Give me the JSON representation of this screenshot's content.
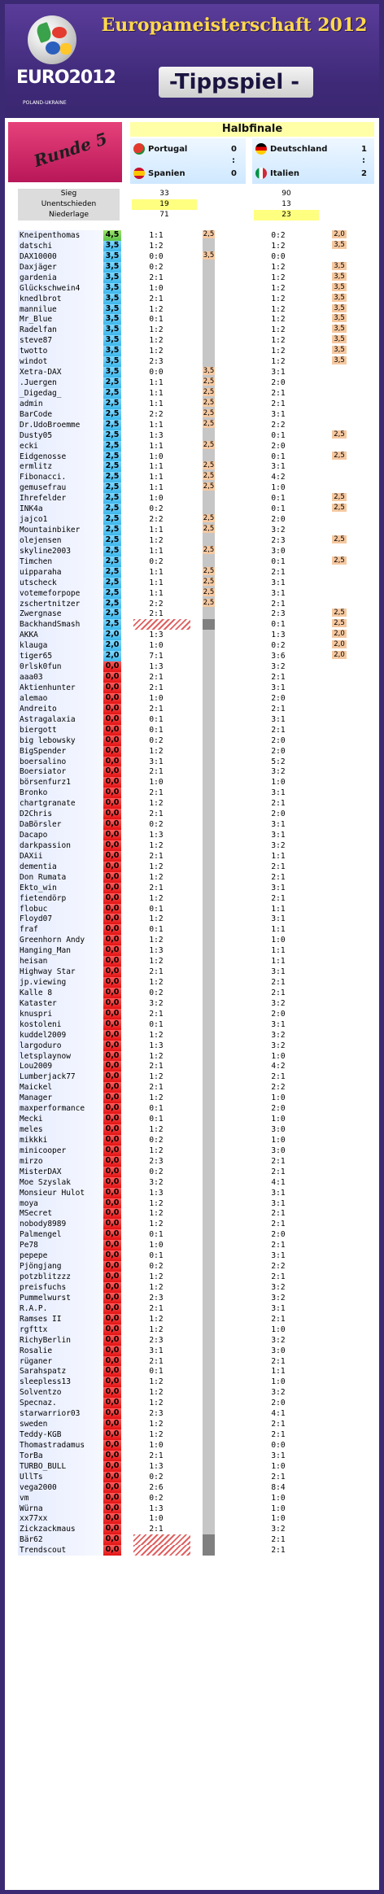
{
  "header": {
    "title": "Europameisterschaft 2012",
    "subtitle": "-Tippspiel -",
    "logo_text": "EURO2012",
    "logo_sub": "UEFA",
    "logo_country": "POLAND-UKRAINE"
  },
  "round": "Runde 5",
  "stage": "Halbfinale",
  "matches": [
    {
      "home": "Portugal",
      "away": "Spanien",
      "home_score": "0",
      "sep": ":",
      "away_score": "0"
    },
    {
      "home": "Deutschland",
      "away": "Italien",
      "home_score": "1",
      "sep": ":",
      "away_score": "2"
    }
  ],
  "stats": {
    "labels": [
      "Sieg",
      "Unentschieden",
      "Niederlage"
    ],
    "match1": [
      "33",
      "19",
      "71"
    ],
    "match2": [
      "90",
      "13",
      "23"
    ]
  },
  "colors": {
    "frame": "#3b2a73",
    "title": "#ffd84a",
    "round": "#d3286a",
    "stage_bg": "#ffffa8",
    "bonus_orange": "#f6c8a0",
    "gray_col": "#c6c6c6"
  },
  "rows": [
    {
      "n": "Kneipenthomas",
      "p": "4,5",
      "t1": "1:1",
      "b1": "2,5",
      "t2": "0:2",
      "b2": "2,0"
    },
    {
      "n": "datschi",
      "p": "3,5",
      "t1": "1:2",
      "b1": "",
      "t2": "1:2",
      "b2": "3,5"
    },
    {
      "n": "DAX10000",
      "p": "3,5",
      "t1": "0:0",
      "b1": "3,5",
      "t2": "0:0",
      "b2": ""
    },
    {
      "n": "Daxjäger",
      "p": "3,5",
      "t1": "0:2",
      "b1": "",
      "t2": "1:2",
      "b2": "3,5"
    },
    {
      "n": "gardenia",
      "p": "3,5",
      "t1": "2:1",
      "b1": "",
      "t2": "1:2",
      "b2": "3,5"
    },
    {
      "n": "Glückschwein4",
      "p": "3,5",
      "t1": "1:0",
      "b1": "",
      "t2": "1:2",
      "b2": "3,5"
    },
    {
      "n": "knedlbrot",
      "p": "3,5",
      "t1": "2:1",
      "b1": "",
      "t2": "1:2",
      "b2": "3,5"
    },
    {
      "n": "mannilue",
      "p": "3,5",
      "t1": "1:2",
      "b1": "",
      "t2": "1:2",
      "b2": "3,5"
    },
    {
      "n": "Mr_Blue",
      "p": "3,5",
      "t1": "0:1",
      "b1": "",
      "t2": "1:2",
      "b2": "3,5"
    },
    {
      "n": "Radelfan",
      "p": "3,5",
      "t1": "1:2",
      "b1": "",
      "t2": "1:2",
      "b2": "3,5"
    },
    {
      "n": "steve87",
      "p": "3,5",
      "t1": "1:2",
      "b1": "",
      "t2": "1:2",
      "b2": "3,5"
    },
    {
      "n": "twotto",
      "p": "3,5",
      "t1": "1:2",
      "b1": "",
      "t2": "1:2",
      "b2": "3,5"
    },
    {
      "n": "windot",
      "p": "3,5",
      "t1": "2:3",
      "b1": "",
      "t2": "1:2",
      "b2": "3,5"
    },
    {
      "n": "Xetra-DAX",
      "p": "3,5",
      "t1": "0:0",
      "b1": "3,5",
      "t2": "3:1",
      "b2": ""
    },
    {
      "n": ".Juergen",
      "p": "2,5",
      "t1": "1:1",
      "b1": "2,5",
      "t2": "2:0",
      "b2": ""
    },
    {
      "n": "_Digedag_",
      "p": "2,5",
      "t1": "1:1",
      "b1": "2,5",
      "t2": "2:1",
      "b2": ""
    },
    {
      "n": "admin",
      "p": "2,5",
      "t1": "1:1",
      "b1": "2,5",
      "t2": "2:1",
      "b2": ""
    },
    {
      "n": "BarCode",
      "p": "2,5",
      "t1": "2:2",
      "b1": "2,5",
      "t2": "3:1",
      "b2": ""
    },
    {
      "n": "Dr.UdoBroemme",
      "p": "2,5",
      "t1": "1:1",
      "b1": "2,5",
      "t2": "2:2",
      "b2": ""
    },
    {
      "n": "Dusty05",
      "p": "2,5",
      "t1": "1:3",
      "b1": "",
      "t2": "0:1",
      "b2": "2,5"
    },
    {
      "n": "ecki",
      "p": "2,5",
      "t1": "1:1",
      "b1": "2,5",
      "t2": "2:0",
      "b2": ""
    },
    {
      "n": "Eidgenosse",
      "p": "2,5",
      "t1": "1:0",
      "b1": "",
      "t2": "0:1",
      "b2": "2,5"
    },
    {
      "n": "ermlitz",
      "p": "2,5",
      "t1": "1:1",
      "b1": "2,5",
      "t2": "3:1",
      "b2": ""
    },
    {
      "n": "Fibonacci.",
      "p": "2,5",
      "t1": "1:1",
      "b1": "2,5",
      "t2": "4:2",
      "b2": ""
    },
    {
      "n": "gemusefrau",
      "p": "2,5",
      "t1": "1:1",
      "b1": "2,5",
      "t2": "1:0",
      "b2": ""
    },
    {
      "n": "Ihrefelder",
      "p": "2,5",
      "t1": "1:0",
      "b1": "",
      "t2": "0:1",
      "b2": "2,5"
    },
    {
      "n": "INK4a",
      "p": "2,5",
      "t1": "0:2",
      "b1": "",
      "t2": "0:1",
      "b2": "2,5"
    },
    {
      "n": "jajco1",
      "p": "2,5",
      "t1": "2:2",
      "b1": "2,5",
      "t2": "2:0",
      "b2": ""
    },
    {
      "n": "Mountainbiker",
      "p": "2,5",
      "t1": "1:1",
      "b1": "2,5",
      "t2": "3:2",
      "b2": ""
    },
    {
      "n": "olejensen",
      "p": "2,5",
      "t1": "1:2",
      "b1": "",
      "t2": "2:3",
      "b2": "2,5"
    },
    {
      "n": "skyline2003",
      "p": "2,5",
      "t1": "1:1",
      "b1": "2,5",
      "t2": "3:0",
      "b2": ""
    },
    {
      "n": "Timchen",
      "p": "2,5",
      "t1": "0:2",
      "b1": "",
      "t2": "0:1",
      "b2": "2,5"
    },
    {
      "n": "uipparaha",
      "p": "2,5",
      "t1": "1:1",
      "b1": "2,5",
      "t2": "2:1",
      "b2": ""
    },
    {
      "n": "utscheck",
      "p": "2,5",
      "t1": "1:1",
      "b1": "2,5",
      "t2": "3:1",
      "b2": ""
    },
    {
      "n": "votemeforpope",
      "p": "2,5",
      "t1": "1:1",
      "b1": "2,5",
      "t2": "3:1",
      "b2": ""
    },
    {
      "n": "zschertnitzer",
      "p": "2,5",
      "t1": "2:2",
      "b1": "2,5",
      "t2": "2:1",
      "b2": ""
    },
    {
      "n": "Zwergnase",
      "p": "2,5",
      "t1": "2:1",
      "b1": "",
      "t2": "2:3",
      "b2": "2,5"
    },
    {
      "n": "BackhandSmash",
      "p": "2,5",
      "t1": "",
      "b1": "",
      "t2": "0:1",
      "b2": "2,5",
      "hatch": true
    },
    {
      "n": "AKKA",
      "p": "2,0",
      "t1": "1:3",
      "b1": "",
      "t2": "1:3",
      "b2": "2,0"
    },
    {
      "n": "klauga",
      "p": "2,0",
      "t1": "1:0",
      "b1": "",
      "t2": "0:2",
      "b2": "2,0"
    },
    {
      "n": "tiger65",
      "p": "2,0",
      "t1": "7:1",
      "b1": "",
      "t2": "3:6",
      "b2": "2,0"
    },
    {
      "n": "0rlsk0fun",
      "p": "0,0",
      "t1": "1:3",
      "b1": "",
      "t2": "3:2",
      "b2": ""
    },
    {
      "n": "aaa03",
      "p": "0,0",
      "t1": "2:1",
      "b1": "",
      "t2": "2:1",
      "b2": ""
    },
    {
      "n": "Aktienhunter",
      "p": "0,0",
      "t1": "2:1",
      "b1": "",
      "t2": "3:1",
      "b2": ""
    },
    {
      "n": "alemao",
      "p": "0,0",
      "t1": "1:0",
      "b1": "",
      "t2": "2:0",
      "b2": ""
    },
    {
      "n": "Andreito",
      "p": "0,0",
      "t1": "2:1",
      "b1": "",
      "t2": "2:1",
      "b2": ""
    },
    {
      "n": "Astragalaxia",
      "p": "0,0",
      "t1": "0:1",
      "b1": "",
      "t2": "3:1",
      "b2": ""
    },
    {
      "n": "biergott",
      "p": "0,0",
      "t1": "0:1",
      "b1": "",
      "t2": "2:1",
      "b2": ""
    },
    {
      "n": "big lebowsky",
      "p": "0,0",
      "t1": "0:2",
      "b1": "",
      "t2": "2:0",
      "b2": ""
    },
    {
      "n": "BigSpender",
      "p": "0,0",
      "t1": "1:2",
      "b1": "",
      "t2": "2:0",
      "b2": ""
    },
    {
      "n": "boersalino",
      "p": "0,0",
      "t1": "3:1",
      "b1": "",
      "t2": "5:2",
      "b2": ""
    },
    {
      "n": "Boersiator",
      "p": "0,0",
      "t1": "2:1",
      "b1": "",
      "t2": "3:2",
      "b2": ""
    },
    {
      "n": "börsenfurz1",
      "p": "0,0",
      "t1": "1:0",
      "b1": "",
      "t2": "1:0",
      "b2": ""
    },
    {
      "n": "Bronko",
      "p": "0,0",
      "t1": "2:1",
      "b1": "",
      "t2": "3:1",
      "b2": ""
    },
    {
      "n": "chartgranate",
      "p": "0,0",
      "t1": "1:2",
      "b1": "",
      "t2": "2:1",
      "b2": ""
    },
    {
      "n": "D2Chris",
      "p": "0,0",
      "t1": "2:1",
      "b1": "",
      "t2": "2:0",
      "b2": ""
    },
    {
      "n": "DaBörsler",
      "p": "0,0",
      "t1": "0:2",
      "b1": "",
      "t2": "3:1",
      "b2": ""
    },
    {
      "n": "Dacapo",
      "p": "0,0",
      "t1": "1:3",
      "b1": "",
      "t2": "3:1",
      "b2": ""
    },
    {
      "n": "darkpassion",
      "p": "0,0",
      "t1": "1:2",
      "b1": "",
      "t2": "3:2",
      "b2": ""
    },
    {
      "n": "DAXii",
      "p": "0,0",
      "t1": "2:1",
      "b1": "",
      "t2": "1:1",
      "b2": ""
    },
    {
      "n": "dementia",
      "p": "0,0",
      "t1": "1:2",
      "b1": "",
      "t2": "2:1",
      "b2": ""
    },
    {
      "n": "Don Rumata",
      "p": "0,0",
      "t1": "1:2",
      "b1": "",
      "t2": "2:1",
      "b2": ""
    },
    {
      "n": "Ekto_win",
      "p": "0,0",
      "t1": "2:1",
      "b1": "",
      "t2": "3:1",
      "b2": ""
    },
    {
      "n": "fietendörp",
      "p": "0,0",
      "t1": "1:2",
      "b1": "",
      "t2": "2:1",
      "b2": ""
    },
    {
      "n": "flobuc",
      "p": "0,0",
      "t1": "0:1",
      "b1": "",
      "t2": "1:1",
      "b2": ""
    },
    {
      "n": "Floyd07",
      "p": "0,0",
      "t1": "1:2",
      "b1": "",
      "t2": "3:1",
      "b2": ""
    },
    {
      "n": "fraf",
      "p": "0,0",
      "t1": "0:1",
      "b1": "",
      "t2": "1:1",
      "b2": ""
    },
    {
      "n": "Greenhorn Andy",
      "p": "0,0",
      "t1": "1:2",
      "b1": "",
      "t2": "1:0",
      "b2": ""
    },
    {
      "n": "Hanging_Man",
      "p": "0,0",
      "t1": "1:3",
      "b1": "",
      "t2": "1:1",
      "b2": ""
    },
    {
      "n": "heisan",
      "p": "0,0",
      "t1": "1:2",
      "b1": "",
      "t2": "1:1",
      "b2": ""
    },
    {
      "n": "Highway Star",
      "p": "0,0",
      "t1": "2:1",
      "b1": "",
      "t2": "3:1",
      "b2": ""
    },
    {
      "n": "jp.viewing",
      "p": "0,0",
      "t1": "1:2",
      "b1": "",
      "t2": "2:1",
      "b2": ""
    },
    {
      "n": "Kalle 8",
      "p": "0,0",
      "t1": "0:2",
      "b1": "",
      "t2": "2:1",
      "b2": ""
    },
    {
      "n": "Kataster",
      "p": "0,0",
      "t1": "3:2",
      "b1": "",
      "t2": "3:2",
      "b2": ""
    },
    {
      "n": "knuspri",
      "p": "0,0",
      "t1": "2:1",
      "b1": "",
      "t2": "2:0",
      "b2": ""
    },
    {
      "n": "kostoleni",
      "p": "0,0",
      "t1": "0:1",
      "b1": "",
      "t2": "3:1",
      "b2": ""
    },
    {
      "n": "kuddel2009",
      "p": "0,0",
      "t1": "1:2",
      "b1": "",
      "t2": "3:2",
      "b2": ""
    },
    {
      "n": "largoduro",
      "p": "0,0",
      "t1": "1:3",
      "b1": "",
      "t2": "3:2",
      "b2": ""
    },
    {
      "n": "letsplaynow",
      "p": "0,0",
      "t1": "1:2",
      "b1": "",
      "t2": "1:0",
      "b2": ""
    },
    {
      "n": "Lou2009",
      "p": "0,0",
      "t1": "2:1",
      "b1": "",
      "t2": "4:2",
      "b2": ""
    },
    {
      "n": "Lumberjack77",
      "p": "0,0",
      "t1": "1:2",
      "b1": "",
      "t2": "2:1",
      "b2": ""
    },
    {
      "n": "Maickel",
      "p": "0,0",
      "t1": "2:1",
      "b1": "",
      "t2": "2:2",
      "b2": ""
    },
    {
      "n": "Manager",
      "p": "0,0",
      "t1": "1:2",
      "b1": "",
      "t2": "1:0",
      "b2": ""
    },
    {
      "n": "maxperformance",
      "p": "0,0",
      "t1": "0:1",
      "b1": "",
      "t2": "2:0",
      "b2": ""
    },
    {
      "n": "Mecki",
      "p": "0,0",
      "t1": "0:1",
      "b1": "",
      "t2": "1:0",
      "b2": ""
    },
    {
      "n": "meles",
      "p": "0,0",
      "t1": "1:2",
      "b1": "",
      "t2": "3:0",
      "b2": ""
    },
    {
      "n": "mikkki",
      "p": "0,0",
      "t1": "0:2",
      "b1": "",
      "t2": "1:0",
      "b2": ""
    },
    {
      "n": "minicooper",
      "p": "0,0",
      "t1": "1:2",
      "b1": "",
      "t2": "3:0",
      "b2": ""
    },
    {
      "n": "mirzo",
      "p": "0,0",
      "t1": "2:3",
      "b1": "",
      "t2": "2:1",
      "b2": ""
    },
    {
      "n": "MisterDAX",
      "p": "0,0",
      "t1": "0:2",
      "b1": "",
      "t2": "2:1",
      "b2": ""
    },
    {
      "n": "Moe Szyslak",
      "p": "0,0",
      "t1": "3:2",
      "b1": "",
      "t2": "4:1",
      "b2": ""
    },
    {
      "n": "Monsieur Hulot",
      "p": "0,0",
      "t1": "1:3",
      "b1": "",
      "t2": "3:1",
      "b2": ""
    },
    {
      "n": "moya",
      "p": "0,0",
      "t1": "1:2",
      "b1": "",
      "t2": "3:1",
      "b2": ""
    },
    {
      "n": "MSecret",
      "p": "0,0",
      "t1": "1:2",
      "b1": "",
      "t2": "2:1",
      "b2": ""
    },
    {
      "n": "nobody8989",
      "p": "0,0",
      "t1": "1:2",
      "b1": "",
      "t2": "2:1",
      "b2": ""
    },
    {
      "n": "Palmengel",
      "p": "0,0",
      "t1": "0:1",
      "b1": "",
      "t2": "2:0",
      "b2": ""
    },
    {
      "n": "Pe78",
      "p": "0,0",
      "t1": "1:0",
      "b1": "",
      "t2": "2:1",
      "b2": ""
    },
    {
      "n": "pepepe",
      "p": "0,0",
      "t1": "0:1",
      "b1": "",
      "t2": "3:1",
      "b2": ""
    },
    {
      "n": "Pjöngjang",
      "p": "0,0",
      "t1": "0:2",
      "b1": "",
      "t2": "2:2",
      "b2": ""
    },
    {
      "n": "potzblitzzz",
      "p": "0,0",
      "t1": "1:2",
      "b1": "",
      "t2": "2:1",
      "b2": ""
    },
    {
      "n": "preisfuchs",
      "p": "0,0",
      "t1": "1:2",
      "b1": "",
      "t2": "3:2",
      "b2": ""
    },
    {
      "n": "Pummelwurst",
      "p": "0,0",
      "t1": "2:3",
      "b1": "",
      "t2": "3:2",
      "b2": ""
    },
    {
      "n": "R.A.P.",
      "p": "0,0",
      "t1": "2:1",
      "b1": "",
      "t2": "3:1",
      "b2": ""
    },
    {
      "n": "Ramses II",
      "p": "0,0",
      "t1": "1:2",
      "b1": "",
      "t2": "2:1",
      "b2": ""
    },
    {
      "n": "rgfttx",
      "p": "0,0",
      "t1": "1:2",
      "b1": "",
      "t2": "1:0",
      "b2": ""
    },
    {
      "n": "RichyBerlin",
      "p": "0,0",
      "t1": "2:3",
      "b1": "",
      "t2": "3:2",
      "b2": ""
    },
    {
      "n": "Rosalie",
      "p": "0,0",
      "t1": "3:1",
      "b1": "",
      "t2": "3:0",
      "b2": ""
    },
    {
      "n": "rüganer",
      "p": "0,0",
      "t1": "2:1",
      "b1": "",
      "t2": "2:1",
      "b2": ""
    },
    {
      "n": "Sarahspatz",
      "p": "0,0",
      "t1": "0:1",
      "b1": "",
      "t2": "1:1",
      "b2": ""
    },
    {
      "n": "sleepless13",
      "p": "0,0",
      "t1": "1:2",
      "b1": "",
      "t2": "1:0",
      "b2": ""
    },
    {
      "n": "Solventzo",
      "p": "0,0",
      "t1": "1:2",
      "b1": "",
      "t2": "3:2",
      "b2": ""
    },
    {
      "n": "Specnaz.",
      "p": "0,0",
      "t1": "1:2",
      "b1": "",
      "t2": "2:0",
      "b2": ""
    },
    {
      "n": "starwarrior03",
      "p": "0,0",
      "t1": "2:3",
      "b1": "",
      "t2": "4:1",
      "b2": ""
    },
    {
      "n": "sweden",
      "p": "0,0",
      "t1": "1:2",
      "b1": "",
      "t2": "2:1",
      "b2": ""
    },
    {
      "n": "Teddy-KGB",
      "p": "0,0",
      "t1": "1:2",
      "b1": "",
      "t2": "2:1",
      "b2": ""
    },
    {
      "n": "Thomastradamus",
      "p": "0,0",
      "t1": "1:0",
      "b1": "",
      "t2": "0:0",
      "b2": ""
    },
    {
      "n": "TorBa",
      "p": "0,0",
      "t1": "2:1",
      "b1": "",
      "t2": "3:1",
      "b2": ""
    },
    {
      "n": "TURBO_BULL",
      "p": "0,0",
      "t1": "1:3",
      "b1": "",
      "t2": "1:0",
      "b2": ""
    },
    {
      "n": "UllTs",
      "p": "0,0",
      "t1": "0:2",
      "b1": "",
      "t2": "2:1",
      "b2": ""
    },
    {
      "n": "vega2000",
      "p": "0,0",
      "t1": "2:6",
      "b1": "",
      "t2": "8:4",
      "b2": ""
    },
    {
      "n": "vm",
      "p": "0,0",
      "t1": "0:2",
      "b1": "",
      "t2": "1:0",
      "b2": ""
    },
    {
      "n": "Würna",
      "p": "0,0",
      "t1": "1:3",
      "b1": "",
      "t2": "1:0",
      "b2": ""
    },
    {
      "n": "xx77xx",
      "p": "0,0",
      "t1": "1:0",
      "b1": "",
      "t2": "1:0",
      "b2": ""
    },
    {
      "n": "Zickzackmaus",
      "p": "0,0",
      "t1": "2:1",
      "b1": "",
      "t2": "3:2",
      "b2": ""
    },
    {
      "n": "Bär62",
      "p": "0,0",
      "t1": "",
      "b1": "",
      "t2": "2:1",
      "b2": "",
      "hatch": true
    },
    {
      "n": "Trendscout",
      "p": "0,0",
      "t1": "",
      "b1": "",
      "t2": "2:1",
      "b2": "",
      "hatch": true
    }
  ]
}
